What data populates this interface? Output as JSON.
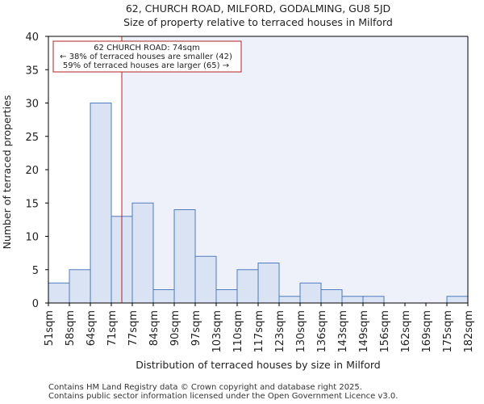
{
  "chart_data": {
    "type": "histogram",
    "title": "62, CHURCH ROAD, MILFORD, GODALMING, GU8 5JD",
    "subtitle": "Size of property relative to terraced houses in Milford",
    "xlabel": "Distribution of terraced houses by size in Milford",
    "ylabel": "Number of terraced properties",
    "ylim": [
      0,
      40
    ],
    "yticks": [
      0,
      5,
      10,
      15,
      20,
      25,
      30,
      35,
      40
    ],
    "categories": [
      "51sqm",
      "58sqm",
      "64sqm",
      "71sqm",
      "77sqm",
      "84sqm",
      "90sqm",
      "97sqm",
      "103sqm",
      "110sqm",
      "117sqm",
      "123sqm",
      "130sqm",
      "136sqm",
      "143sqm",
      "149sqm",
      "156sqm",
      "162sqm",
      "169sqm",
      "175sqm",
      "182sqm"
    ],
    "values": [
      3,
      5,
      30,
      13,
      15,
      2,
      14,
      7,
      2,
      5,
      6,
      1,
      3,
      2,
      1,
      1,
      0,
      0,
      0,
      1
    ],
    "property_line": {
      "value_sqm": 74,
      "bin_position": 3.5
    },
    "annotation": {
      "line1": "62 CHURCH ROAD: 74sqm",
      "line2": "← 38% of terraced houses are smaller (42)",
      "line3": "59% of terraced houses are larger (65) →"
    },
    "colors": {
      "bar_fill": "#dae3f3",
      "bar_edge": "#4f7cc0",
      "plot_bg": "#eef1fa",
      "property_line": "#b22222",
      "annotation_border": "#b22222"
    }
  },
  "footer": {
    "line1": "Contains HM Land Registry data © Crown copyright and database right 2025.",
    "line2": "Contains public sector information licensed under the Open Government Licence v3.0."
  }
}
